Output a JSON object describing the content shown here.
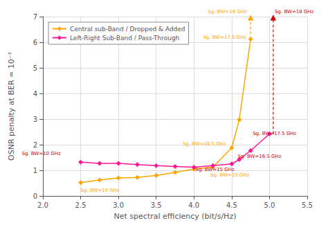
{
  "chart_data": {
    "type": "line",
    "xlabel": "Net spectral efficiency (bit/s/Hz)",
    "ylabel": "OSNR penalty at BER = 10⁻³",
    "series": [
      {
        "name": "Central sub-Band / Dropped & Added",
        "color": "#FFA500",
        "marker": "diamond",
        "line_style": "solid",
        "x": [
          2.5,
          2.75,
          3.0,
          3.25,
          3.5,
          3.75,
          4.0,
          4.25,
          4.5,
          4.6,
          4.75
        ],
        "values": [
          0.52,
          0.62,
          0.7,
          0.72,
          0.8,
          0.92,
          1.05,
          1.12,
          1.88,
          2.97,
          6.12
        ]
      },
      {
        "name": "Left-Right Sub-Band / Pass-Through",
        "color": "#FF1493",
        "marker": "diamond",
        "line_style": "solid",
        "x": [
          2.5,
          2.75,
          3.0,
          3.25,
          3.5,
          3.75,
          4.0,
          4.25,
          4.5,
          4.6,
          4.75,
          5.0
        ],
        "values": [
          1.32,
          1.27,
          1.27,
          1.22,
          1.18,
          1.15,
          1.12,
          1.18,
          1.25,
          1.42,
          1.77,
          2.42
        ]
      }
    ],
    "xlim": [
      2.0,
      5.5
    ],
    "ylim": [
      0.0,
      7.0
    ],
    "xticks": [
      {
        "value": 2.0,
        "label": "2.0"
      },
      2.5,
      {
        "value": 3.0,
        "label": "3.0"
      },
      3.5,
      {
        "value": 4.0,
        "label": "4.0"
      },
      4.5,
      {
        "value": 5.0,
        "label": "5.0"
      },
      5.5
    ],
    "yticks": [
      0,
      1,
      2,
      3,
      4,
      5,
      6,
      7
    ],
    "grid": true,
    "legend": "upper left",
    "annotations": [
      {
        "text": "Sg. BW=10 GHz",
        "x": 2.5,
        "y": 0.33,
        "color": "#FFA500"
      },
      {
        "text": "Sg. BW=16.5 GHz",
        "x": 3.85,
        "y": 1.93,
        "color": "#FFA500"
      },
      {
        "text": "Sg. BW=15 GHz",
        "x": 4.22,
        "y": 0.8,
        "color": "#FFA500"
      },
      {
        "text": "Sg. BW=17.5 GHz",
        "x": 4.12,
        "y": 6.08,
        "color": "#FFA500"
      },
      {
        "text": "Sg. BW=18 GHz",
        "x": 4.7,
        "y": 7.08,
        "color": "#FFA500"
      },
      {
        "text": "Sg. BW=10 GHz",
        "x": 1.72,
        "y": 1.55,
        "color": "#CC0000"
      },
      {
        "text": "Sg. BW=15 GHz",
        "x": 4.02,
        "y": 1.14,
        "color": "#CC0000"
      },
      {
        "text": "Sg. BW=16.5 GHz",
        "x": 4.58,
        "y": 1.42,
        "color": "#CC0000"
      },
      {
        "text": "Sg. BW=17.5 GHz",
        "x": 4.78,
        "y": 2.42,
        "color": "#CC0000"
      },
      {
        "text": "Sg. BW=18 GHz",
        "x": 5.07,
        "y": 7.08,
        "color": "#CC0000"
      }
    ],
    "arrows": [
      {
        "x": 4.75,
        "y_start": 6.12,
        "y_end": 7.05,
        "color": "#FFA500"
      },
      {
        "x": 5.05,
        "y_start": 2.42,
        "y_end": 7.05,
        "color": "#CC0000"
      }
    ]
  }
}
